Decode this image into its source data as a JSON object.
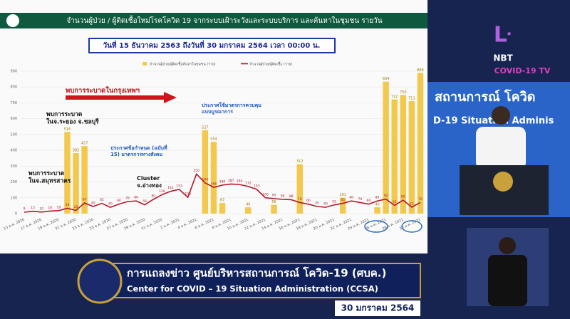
{
  "chart_data": {
    "type": "bar_line",
    "title": "จำนวนผู้ป่วย / ผู้ติดเชื้อใหม่โรคโควิด 19 จากระบบเฝ้าระวังและระบบบริการ และค้นหาในชุมชน รายวัน",
    "subtitle": "วันที่ 15 ธันวาคม 2563 ถึงวันที่ 30 มกราคม 2564 เวลา 00:00 น.",
    "categories": [
      "15 ธ.ค. 2020",
      null,
      "17 ธ.ค. 2020",
      null,
      "19 ธ.ค. 2020",
      null,
      "21 ธ.ค. 2020",
      null,
      "23 ธ.ค. 2020",
      null,
      "25 ธ.ค. 2020",
      null,
      "27 ธ.ค. 2020",
      null,
      "29 ธ.ค. 2020",
      null,
      "31 ธ.ค. 2020",
      null,
      "2 ม.ค. 2021",
      null,
      "4 ม.ค. 2021",
      null,
      "6 ม.ค. 2021",
      null,
      "8 ม.ค. 2021",
      null,
      "10 ม.ค. 2021",
      null,
      "12 ม.ค. 2021",
      null,
      "14 ม.ค. 2021",
      null,
      "16 ม.ค. 2021",
      null,
      "18 ม.ค. 2021",
      null,
      "20 ม.ค. 2021",
      null,
      "22 ม.ค. 2021",
      null,
      "24 ม.ค. 2021",
      null,
      "26 ม.ค. 2021",
      null,
      "28 ม.ค. 2021",
      null,
      "30 ม.ค. 2021"
    ],
    "series": [
      {
        "name": "จำนวนผู้ป่วย/ผู้ติดเชื้อค้นหาในชุมชน (ราย)",
        "color": "#f2c94c",
        "kind": "bar",
        "values": [
          0,
          0,
          0,
          0,
          0,
          516,
          382,
          427,
          0,
          0,
          0,
          0,
          0,
          0,
          0,
          0,
          0,
          0,
          0,
          0,
          0,
          527,
          454,
          67,
          0,
          0,
          40,
          0,
          0,
          56,
          0,
          0,
          312,
          0,
          0,
          0,
          0,
          101,
          0,
          0,
          0,
          40,
          834,
          722,
          750,
          711,
          889
        ]
      },
      {
        "name": "จำนวนผู้ป่วย/ผู้ติดเชื้อ (ราย)",
        "color": "#b0182a",
        "kind": "line",
        "values": [
          9,
          15,
          10,
          16,
          19,
          34,
          20,
          67,
          45,
          65,
          40,
          60,
          76,
          80,
          56,
          90,
          120,
          141,
          153,
          103,
          250,
          194,
          166,
          180,
          187,
          184,
          172,
          153,
          100,
          95,
          90,
          88,
          70,
          60,
          45,
          40,
          55,
          65,
          80,
          70,
          60,
          80,
          92,
          52,
          85,
          41,
          70
        ]
      }
    ],
    "ylim": [
      0,
      900
    ],
    "yticks": [
      0,
      100,
      200,
      300,
      400,
      500,
      600,
      700,
      800,
      900
    ],
    "annotations": [
      "พบการระบาดในกรุงเทพฯ",
      "พบการระบาด ในจ.ระยอง จ.ชลบุรี",
      "พบการระบาด ในจ.สมุทรสาคร",
      "ประกาศข้อกำหนด (ฉบับที่ 15) มาตรการทางสังคม",
      "Cluster จ.อ่างทอง",
      "ประกาศใช้มาตรการควบคุม แบบบูรณาการ"
    ]
  },
  "channel": {
    "logo": "NBT",
    "tag": "COVID-19 TV"
  },
  "backdrop": {
    "line1": "สถานการณ์ โควิด",
    "line2": "D-19 Situation Adminis"
  },
  "banner": {
    "title": "การแถลงข่าว ศูนย์บริหารสถานการณ์ โควิด-19 (ศบค.)",
    "subtitle": "Center for COVID – 19 Situation Administration (CCSA)",
    "date": "30 มกราคม 2564"
  }
}
